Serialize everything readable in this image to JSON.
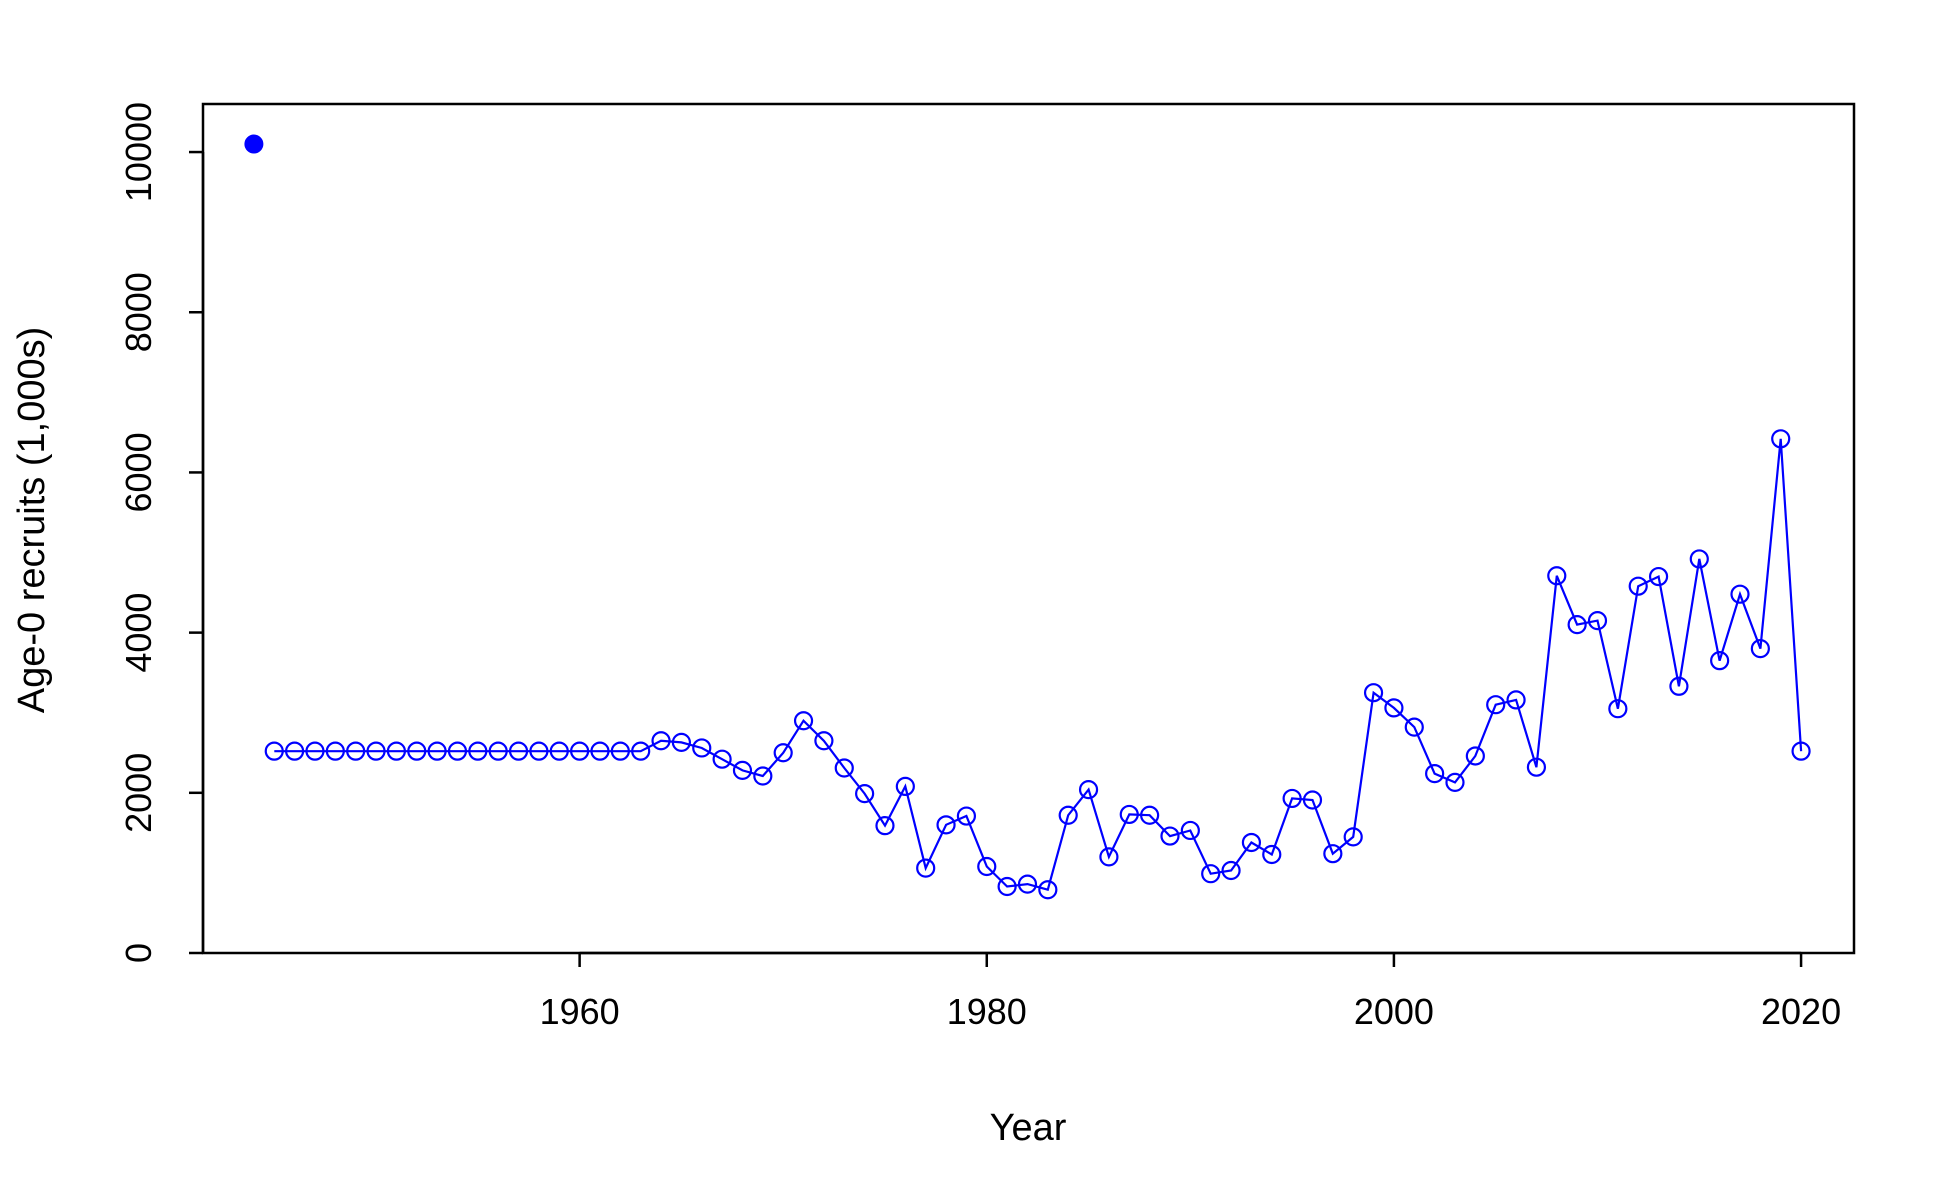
{
  "chart_data": {
    "type": "line",
    "title": "",
    "xlabel": "Year",
    "ylabel": "Age-0 recruits (1,000s)",
    "xlim": [
      1941.5,
      2022.6
    ],
    "ylim": [
      0,
      10600
    ],
    "x_ticks": [
      1960,
      1980,
      2000,
      2020
    ],
    "y_ticks": [
      0,
      2000,
      4000,
      6000,
      8000,
      10000
    ],
    "x_tick_labels": [
      "1960",
      "1980",
      "2000",
      "2020"
    ],
    "y_tick_labels": [
      "0",
      "2000",
      "4000",
      "6000",
      "8000",
      "10000"
    ],
    "grid": false,
    "legend": "none",
    "series": [
      {
        "marker": "open-circle",
        "line": true,
        "color": "#0000FF",
        "x": [
          1945,
          1946,
          1947,
          1948,
          1949,
          1950,
          1951,
          1952,
          1953,
          1954,
          1955,
          1956,
          1957,
          1958,
          1959,
          1960,
          1961,
          1962,
          1963,
          1964,
          1965,
          1966,
          1967,
          1968,
          1969,
          1970,
          1971,
          1972,
          1973,
          1974,
          1975,
          1976,
          1977,
          1978,
          1979,
          1980,
          1981,
          1982,
          1983,
          1984,
          1985,
          1986,
          1987,
          1988,
          1989,
          1990,
          1991,
          1992,
          1993,
          1994,
          1995,
          1996,
          1997,
          1998,
          1999,
          2000,
          2001,
          2002,
          2003,
          2004,
          2005,
          2006,
          2007,
          2008,
          2009,
          2010,
          2011,
          2012,
          2013,
          2014,
          2015,
          2016,
          2017,
          2018,
          2019,
          2020
        ],
        "values": [
          2520,
          2520,
          2520,
          2520,
          2520,
          2520,
          2520,
          2520,
          2520,
          2520,
          2520,
          2520,
          2520,
          2520,
          2520,
          2520,
          2520,
          2520,
          2520,
          2650,
          2630,
          2560,
          2420,
          2280,
          2210,
          2500,
          2900,
          2650,
          2310,
          1990,
          1590,
          2080,
          1060,
          1600,
          1710,
          1080,
          830,
          860,
          790,
          1720,
          2040,
          1200,
          1730,
          1720,
          1460,
          1530,
          990,
          1030,
          1380,
          1230,
          1930,
          1910,
          1240,
          1450,
          3250,
          3060,
          2820,
          2240,
          2130,
          2460,
          3100,
          3160,
          2320,
          4710,
          4100,
          4150,
          3050,
          4580,
          4700,
          3330,
          4920,
          3650,
          4480,
          3800,
          6420,
          2520
        ]
      },
      {
        "marker": "filled-circle",
        "line": false,
        "color": "#0000FF",
        "x": [
          1944
        ],
        "values": [
          10100
        ]
      }
    ]
  }
}
